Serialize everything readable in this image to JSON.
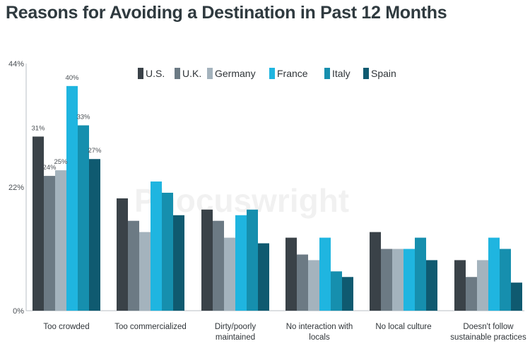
{
  "title": "Reasons for Avoiding a Destination in Past 12 Months",
  "watermark": "Phocuswright",
  "colors": {
    "U.S.": "#3a4248",
    "U.K.": "#6c7a84",
    "Germany": "#a4b3bd",
    "France": "#1fb5e0",
    "Italy": "#168fae",
    "Spain": "#0f5a70"
  },
  "chart_data": {
    "type": "bar",
    "title": "Reasons for Avoiding a Destination in Past 12 Months",
    "xlabel": "",
    "ylabel": "",
    "ylim": [
      0,
      44
    ],
    "yticks": [
      0,
      22,
      44
    ],
    "ytick_labels": [
      "0%",
      "22%",
      "44%"
    ],
    "grid": false,
    "legend_position": "top-center",
    "categories": [
      [
        "Too crowded"
      ],
      [
        "Too commercialized"
      ],
      [
        "Dirty/poorly",
        "maintained"
      ],
      [
        "No interaction with",
        "locals"
      ],
      [
        "No local culture"
      ],
      [
        "Doesn't follow",
        "sustainable practices"
      ]
    ],
    "series": [
      {
        "name": "U.S.",
        "values": [
          31,
          20,
          18,
          13,
          14,
          9
        ]
      },
      {
        "name": "U.K.",
        "values": [
          24,
          16,
          16,
          10,
          11,
          6
        ]
      },
      {
        "name": "Germany",
        "values": [
          25,
          14,
          13,
          9,
          11,
          9
        ]
      },
      {
        "name": "France",
        "values": [
          40,
          23,
          17,
          13,
          11,
          13
        ]
      },
      {
        "name": "Italy",
        "values": [
          33,
          21,
          18,
          7,
          13,
          11
        ]
      },
      {
        "name": "Spain",
        "values": [
          27,
          17,
          12,
          6,
          9,
          5
        ]
      }
    ],
    "data_labels": {
      "category_index": 0,
      "labels": [
        "31%",
        "24%",
        "25%",
        "40%",
        "33%",
        "27%"
      ]
    }
  }
}
